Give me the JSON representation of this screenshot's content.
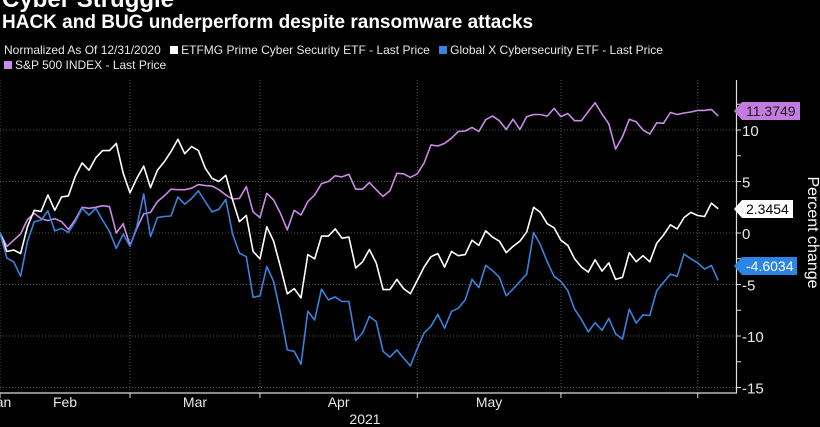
{
  "header": {
    "title": "Cyber Struggle",
    "subtitle": "HACK and BUG underperform despite ransomware attacks"
  },
  "legend": {
    "note": "Normalized As Of 12/31/2020",
    "items": [
      {
        "label": "ETFMG Prime Cyber Security ETF - Last Price",
        "color": "#ffffff"
      },
      {
        "label": "Global X Cybersecurity ETF - Last Price",
        "color": "#3b82dc"
      },
      {
        "label": "S&P 500 INDEX - Last Price",
        "color": "#c98be6"
      }
    ]
  },
  "chart_data": {
    "type": "line",
    "title": "Cyber Struggle",
    "subtitle": "HACK and BUG underperform despite ransomware attacks",
    "xlabel": "2021",
    "ylabel": "Percent change",
    "ylim": [
      -15.5,
      15
    ],
    "y_ticks": [
      10,
      5,
      0,
      -5,
      -10,
      -15
    ],
    "x_tick_labels": [
      "Jan",
      "Feb",
      "Mar",
      "Apr",
      "May"
    ],
    "grid": true,
    "y_axis_side": "right",
    "legend_placement": "top-left",
    "x": [
      "2020-12-31",
      "2021-01-04",
      "2021-01-05",
      "2021-01-06",
      "2021-01-07",
      "2021-01-08",
      "2021-01-11",
      "2021-01-12",
      "2021-01-13",
      "2021-01-14",
      "2021-01-15",
      "2021-01-19",
      "2021-01-20",
      "2021-01-21",
      "2021-01-22",
      "2021-01-25",
      "2021-01-26",
      "2021-01-27",
      "2021-01-28",
      "2021-01-29",
      "2021-02-01",
      "2021-02-02",
      "2021-02-03",
      "2021-02-04",
      "2021-02-05",
      "2021-02-08",
      "2021-02-09",
      "2021-02-10",
      "2021-02-11",
      "2021-02-12",
      "2021-02-16",
      "2021-02-17",
      "2021-02-18",
      "2021-02-19",
      "2021-02-22",
      "2021-02-23",
      "2021-02-24",
      "2021-02-25",
      "2021-02-26",
      "2021-03-01",
      "2021-03-02",
      "2021-03-03",
      "2021-03-04",
      "2021-03-05",
      "2021-03-08",
      "2021-03-09",
      "2021-03-10",
      "2021-03-11",
      "2021-03-12",
      "2021-03-15",
      "2021-03-16",
      "2021-03-17",
      "2021-03-18",
      "2021-03-19",
      "2021-03-22",
      "2021-03-23",
      "2021-03-24",
      "2021-03-25",
      "2021-03-26",
      "2021-03-29",
      "2021-03-30",
      "2021-03-31",
      "2021-04-01",
      "2021-04-05",
      "2021-04-06",
      "2021-04-07",
      "2021-04-08",
      "2021-04-09",
      "2021-04-12",
      "2021-04-13",
      "2021-04-14",
      "2021-04-15",
      "2021-04-16",
      "2021-04-19",
      "2021-04-20",
      "2021-04-21",
      "2021-04-22",
      "2021-04-23",
      "2021-04-26",
      "2021-04-27",
      "2021-04-28",
      "2021-04-29",
      "2021-04-30",
      "2021-05-03",
      "2021-05-04",
      "2021-05-05",
      "2021-05-06",
      "2021-05-07",
      "2021-05-10",
      "2021-05-11",
      "2021-05-12",
      "2021-05-13",
      "2021-05-14",
      "2021-05-17",
      "2021-05-18",
      "2021-05-19",
      "2021-05-20",
      "2021-05-21",
      "2021-05-24",
      "2021-05-25",
      "2021-05-26",
      "2021-05-27",
      "2021-05-28",
      "2021-06-01",
      "2021-06-02",
      "2021-06-03",
      "2021-06-04"
    ],
    "series": [
      {
        "name": "S&P 500 INDEX - Last Price",
        "color": "#c98be6",
        "last_value": "11.3749",
        "badge_color": "#c47be0",
        "badge_text_color": "#1a1a1a",
        "values": [
          0,
          0,
          -1.3,
          -0.7,
          -0.1,
          1.3,
          1.9,
          1.4,
          1.2,
          1.4,
          1.1,
          0.35,
          1.3,
          2.5,
          2.4,
          2.5,
          2.65,
          2.55,
          0,
          0.9,
          -1.2,
          0.45,
          1.85,
          2.0,
          3.05,
          3.6,
          4.25,
          4.2,
          4.2,
          4.35,
          4.7,
          4.6,
          4.55,
          4.2,
          3.7,
          3.3,
          3.35,
          4.5,
          2.05,
          1.5,
          3.85,
          3.2,
          1.9,
          0.3,
          2.2,
          1.75,
          3.05,
          3.7,
          4.8,
          5.0,
          5.55,
          5.45,
          5.7,
          4.25,
          4.25,
          4.9,
          4.2,
          3.55,
          4.1,
          5.8,
          5.75,
          5.4,
          5.75,
          6.8,
          8.55,
          8.45,
          8.7,
          9.2,
          9.85,
          9.9,
          10.25,
          9.85,
          11.0,
          11.35,
          10.9,
          10.05,
          11.05,
          10.05,
          11.3,
          11.5,
          11.5,
          11.35,
          12.1,
          11.3,
          11.6,
          10.9,
          10.9,
          11.8,
          12.65,
          11.55,
          10.6,
          8.15,
          9.35,
          11.05,
          10.8,
          10.0,
          9.6,
          10.7,
          10.65,
          11.7,
          11.5,
          11.65,
          11.75,
          11.9,
          11.9,
          12.0,
          11.37
        ]
      },
      {
        "name": "ETFMG Prime Cyber Security ETF - Last Price",
        "color": "#ffffff",
        "last_value": "2.3454",
        "badge_color": "#ffffff",
        "badge_text_color": "#000000",
        "values": [
          0,
          0,
          -1.8,
          -1.65,
          -2.0,
          0.6,
          2.2,
          2.1,
          3.7,
          2.2,
          3.5,
          3.6,
          5.5,
          6.8,
          6.1,
          7.3,
          8.0,
          8.0,
          8.7,
          5.8,
          3.9,
          5.3,
          6.5,
          4.4,
          6.1,
          6.9,
          7.9,
          9.1,
          7.7,
          8.4,
          8.0,
          6.3,
          5.3,
          5.0,
          5.6,
          3.2,
          1.1,
          1.7,
          -1.8,
          -2.5,
          0.6,
          -0.8,
          -3.3,
          -5.9,
          -5.4,
          -6.3,
          -2.1,
          -2.5,
          -0.3,
          -0.3,
          0.4,
          -0.5,
          -0.4,
          -3.4,
          -2.8,
          -1.6,
          -2.9,
          -5.5,
          -5.5,
          -4.5,
          -5.4,
          -5.9,
          -4.6,
          -3.3,
          -2.3,
          -2.0,
          -3.3,
          -1.8,
          -2.2,
          -2.1,
          -0.7,
          -1.2,
          0.2,
          -0.4,
          -0.8,
          -1.9,
          -1.3,
          -0.8,
          0.1,
          2.5,
          2.0,
          0.9,
          0.5,
          -0.7,
          -1.2,
          -2.5,
          -3.3,
          -3.8,
          -2.6,
          -3.7,
          -2.9,
          -4.5,
          -4.3,
          -1.9,
          -2.8,
          -2.2,
          -2.8,
          -1.0,
          -0.2,
          0.8,
          0.4,
          1.5,
          2.0,
          1.7,
          1.6,
          2.9,
          2.35
        ]
      },
      {
        "name": "Global X Cybersecurity ETF - Last Price",
        "color": "#3b82dc",
        "last_value": "-4.6034",
        "badge_color": "#2b85e4",
        "badge_text_color": "#ffffff",
        "values": [
          0,
          0,
          -2.45,
          -2.8,
          -4.2,
          -0.85,
          1.1,
          1.25,
          2.15,
          0.2,
          0.45,
          0.05,
          1.1,
          2.4,
          1.75,
          2.4,
          1.25,
          0.15,
          -1.5,
          -0.1,
          -1.3,
          0.6,
          3.8,
          -0.35,
          1.5,
          1.6,
          1.65,
          3.5,
          2.8,
          3.35,
          4.1,
          3.05,
          2.05,
          2.3,
          3.25,
          -0.1,
          -1.95,
          -2.3,
          -6.25,
          -6.1,
          -3.25,
          -4.7,
          -7.8,
          -11.35,
          -11.5,
          -12.75,
          -7.6,
          -8.45,
          -5.45,
          -6.5,
          -6.2,
          -6.65,
          -6.65,
          -10.45,
          -9.7,
          -8.1,
          -8.6,
          -11.5,
          -12.05,
          -11.35,
          -12.15,
          -12.9,
          -11.2,
          -9.7,
          -9.05,
          -7.9,
          -9.25,
          -7.6,
          -7.3,
          -6.5,
          -4.5,
          -5.3,
          -3.15,
          -3.65,
          -4.3,
          -6.1,
          -5.45,
          -4.7,
          -4.0,
          0.05,
          -1.15,
          -2.8,
          -4.2,
          -4.7,
          -5.6,
          -7.4,
          -8.4,
          -9.6,
          -8.7,
          -9.45,
          -8.3,
          -9.8,
          -10.3,
          -7.4,
          -8.75,
          -7.95,
          -8.0,
          -5.6,
          -4.8,
          -4.0,
          -4.2,
          -2.05,
          -2.5,
          -2.9,
          -3.5,
          -3.15,
          -4.6
        ]
      }
    ]
  }
}
